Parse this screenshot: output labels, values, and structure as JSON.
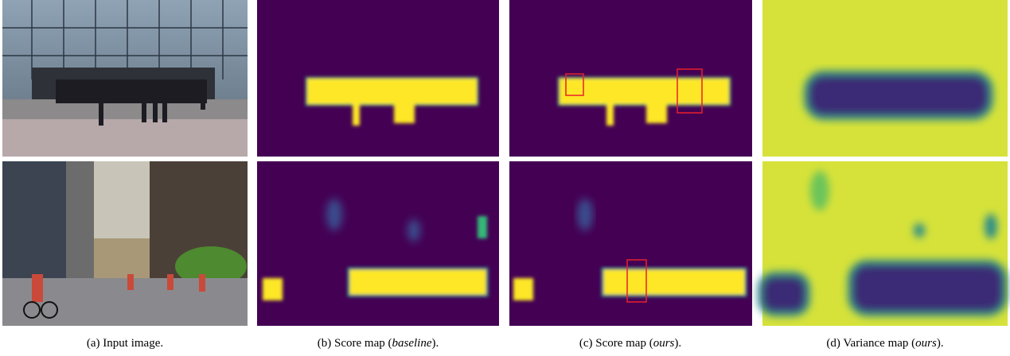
{
  "captions": [
    {
      "prefix": "(a) Input image."
    },
    {
      "prefix": "(b) Score map (",
      "emph": "baseline",
      "suffix": ")."
    },
    {
      "prefix": "(c) Score map (",
      "emph": "ours",
      "suffix": ")."
    },
    {
      "prefix": "(d) Variance map (",
      "emph": "ours",
      "suffix": ")."
    }
  ]
}
